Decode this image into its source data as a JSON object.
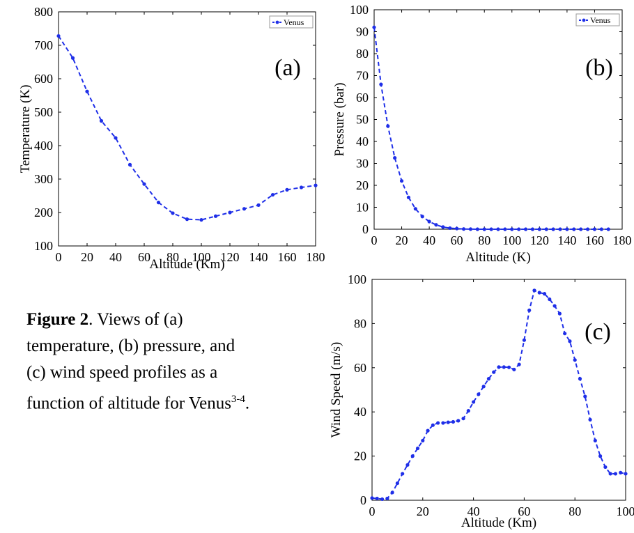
{
  "caption": {
    "label": "Figure 2",
    "text": ". Views of (a) temperature, (b) pressure, and (c) wind speed profiles as a function of altitude for Venus",
    "superscript": "3-4",
    "end": "."
  },
  "colors": {
    "series": "#1f2fe8",
    "axis": "#000000",
    "legend_border": "#999999"
  },
  "chart_data": [
    {
      "type": "line",
      "panel_label": "(a)",
      "xlabel": "Altitude (Km)",
      "ylabel": "Temperature (K)",
      "xlim": [
        0,
        180
      ],
      "ylim": [
        100,
        800
      ],
      "xticks": [
        0,
        20,
        40,
        60,
        80,
        100,
        120,
        140,
        160,
        180
      ],
      "yticks": [
        100,
        200,
        300,
        400,
        500,
        600,
        700,
        800
      ],
      "legend": "top-right",
      "series": [
        {
          "name": "Venus",
          "x": [
            0,
            10,
            20,
            30,
            40,
            50,
            60,
            70,
            80,
            90,
            100,
            110,
            120,
            130,
            140,
            150,
            160,
            170,
            180
          ],
          "y": [
            728,
            662,
            562,
            474,
            423,
            343,
            285,
            230,
            198,
            180,
            178,
            189,
            200,
            211,
            222,
            253,
            268,
            275,
            281
          ]
        }
      ]
    },
    {
      "type": "line",
      "panel_label": "(b)",
      "xlabel": "Altitude (K)",
      "ylabel": "Pressure (bar)",
      "xlim": [
        0,
        180
      ],
      "ylim": [
        0,
        100
      ],
      "xticks": [
        0,
        20,
        40,
        60,
        80,
        100,
        120,
        140,
        160,
        180
      ],
      "yticks": [
        0,
        10,
        20,
        30,
        40,
        50,
        60,
        70,
        80,
        90,
        100
      ],
      "legend": "top-right",
      "series": [
        {
          "name": "Venus",
          "x": [
            0,
            5,
            10,
            15,
            20,
            25,
            30,
            35,
            40,
            45,
            50,
            55,
            60,
            65,
            70,
            75,
            80,
            85,
            90,
            95,
            100,
            105,
            110,
            115,
            120,
            125,
            130,
            135,
            140,
            145,
            150,
            155,
            160,
            165,
            170
          ],
          "y": [
            92,
            66,
            47,
            32.5,
            22,
            14.5,
            9.3,
            5.8,
            3.5,
            2,
            1,
            0.5,
            0.3,
            0.1,
            0.05,
            0,
            0,
            0,
            0,
            0,
            0,
            0,
            0,
            0,
            0,
            0,
            0,
            0,
            0,
            0,
            0,
            0,
            0,
            0,
            0
          ]
        }
      ]
    },
    {
      "type": "line",
      "panel_label": "(c)",
      "xlabel": "Altitude (Km)",
      "ylabel": "Wind Speed (m/s)",
      "xlim": [
        0,
        100
      ],
      "ylim": [
        0,
        100
      ],
      "xticks": [
        0,
        20,
        40,
        60,
        80,
        100
      ],
      "yticks": [
        0,
        20,
        40,
        60,
        80,
        100
      ],
      "series": [
        {
          "name": "",
          "x": [
            0,
            2,
            4,
            6,
            8,
            10,
            12,
            14,
            16,
            18,
            20,
            22,
            24,
            26,
            28,
            30,
            32,
            34,
            36,
            38,
            40,
            42,
            44,
            46,
            48,
            50,
            52,
            54,
            56,
            58,
            60,
            62,
            64,
            66,
            68,
            70,
            72,
            74,
            76,
            78,
            80,
            82,
            84,
            86,
            88,
            90,
            92,
            94,
            96,
            98,
            100
          ],
          "y": [
            1,
            0.8,
            0.5,
            0.8,
            3.5,
            7.7,
            12,
            16,
            20,
            23.5,
            27,
            31.5,
            34,
            35,
            35,
            35.3,
            35.5,
            36,
            37,
            40.5,
            44.5,
            48,
            51.5,
            55,
            58,
            60.3,
            60.3,
            60.2,
            59.2,
            61.5,
            72.5,
            86,
            95,
            94,
            93.5,
            91,
            88,
            84.5,
            75.5,
            72,
            63.5,
            55,
            47,
            36.5,
            27,
            20,
            15,
            12,
            12,
            12.5,
            12
          ]
        }
      ]
    }
  ]
}
